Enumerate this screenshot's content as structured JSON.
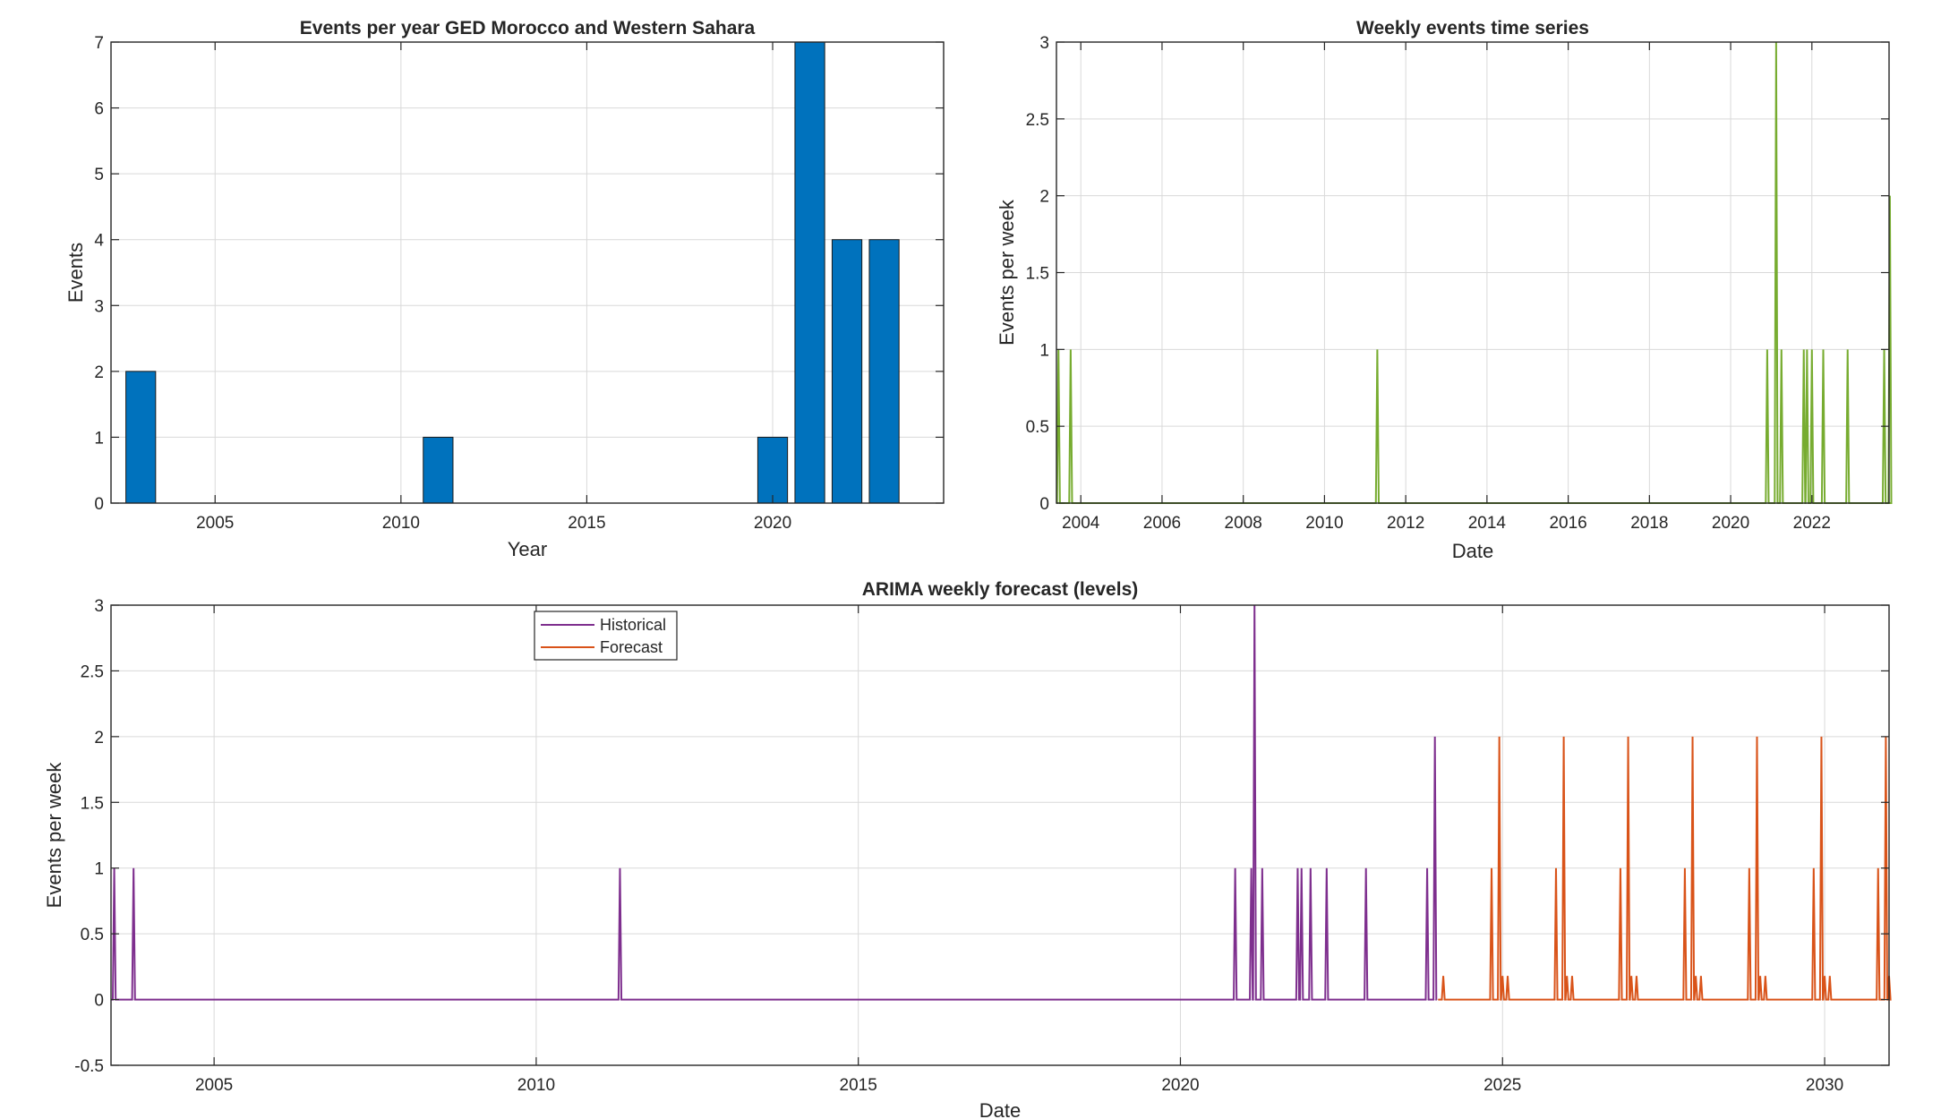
{
  "colors": {
    "bar": "#0072BD",
    "weekly": "#77AC30",
    "historical": "#7E2F8E",
    "forecast": "#D95319",
    "grid": "#d9d9d9",
    "axis": "#262626"
  },
  "chart_data": [
    {
      "type": "bar",
      "title": "Events per year GED Morocco and Western Sahara",
      "xlabel": "Year",
      "ylabel": "Events",
      "xlim": [
        2002.2,
        2024.6
      ],
      "ylim": [
        0,
        7
      ],
      "xticks": [
        2005,
        2010,
        2015,
        2020
      ],
      "yticks": [
        0,
        1,
        2,
        3,
        4,
        5,
        6,
        7
      ],
      "grid": true,
      "categories": [
        2003,
        2011,
        2020,
        2021,
        2022,
        2023
      ],
      "values": [
        2,
        1,
        1,
        7,
        4,
        4
      ]
    },
    {
      "type": "line",
      "title": "Weekly events time series",
      "xlabel": "Date",
      "ylabel": "Events per week",
      "xlim": [
        2003.4,
        2023.9
      ],
      "ylim": [
        0,
        3
      ],
      "xticks": [
        2004,
        2006,
        2008,
        2010,
        2012,
        2014,
        2016,
        2018,
        2020,
        2022
      ],
      "yticks": [
        "0",
        "0.5",
        "1",
        "1.5",
        "2",
        "2.5",
        "3"
      ],
      "grid": true,
      "baseline": 0,
      "spikes": [
        {
          "x": 2003.45,
          "y": 1
        },
        {
          "x": 2003.75,
          "y": 1
        },
        {
          "x": 2011.3,
          "y": 1
        },
        {
          "x": 2020.9,
          "y": 1
        },
        {
          "x": 2021.12,
          "y": 3
        },
        {
          "x": 2021.25,
          "y": 1
        },
        {
          "x": 2021.8,
          "y": 1
        },
        {
          "x": 2021.88,
          "y": 1
        },
        {
          "x": 2022.0,
          "y": 1
        },
        {
          "x": 2022.28,
          "y": 1
        },
        {
          "x": 2022.88,
          "y": 1
        },
        {
          "x": 2023.78,
          "y": 1
        },
        {
          "x": 2023.92,
          "y": 2
        }
      ]
    },
    {
      "type": "line",
      "title": "ARIMA weekly forecast (levels)",
      "xlabel": "Date",
      "ylabel": "Events per week",
      "xlim": [
        2003.4,
        2031.0
      ],
      "ylim": [
        -0.5,
        3
      ],
      "xticks": [
        2005,
        2010,
        2015,
        2020,
        2025,
        2030
      ],
      "yticks": [
        "-0.5",
        "0",
        "0.5",
        "1",
        "1.5",
        "2",
        "2.5",
        "3"
      ],
      "grid": true,
      "legend": {
        "location": "top-left",
        "entries": [
          "Historical",
          "Forecast"
        ]
      },
      "series": [
        {
          "name": "Historical",
          "baseline": 0,
          "spikes": [
            {
              "x": 2003.45,
              "y": 1
            },
            {
              "x": 2003.75,
              "y": 1
            },
            {
              "x": 2011.3,
              "y": 1
            },
            {
              "x": 2020.85,
              "y": 1
            },
            {
              "x": 2021.1,
              "y": 1
            },
            {
              "x": 2021.15,
              "y": 3
            },
            {
              "x": 2021.27,
              "y": 1
            },
            {
              "x": 2021.82,
              "y": 1
            },
            {
              "x": 2021.88,
              "y": 1
            },
            {
              "x": 2022.02,
              "y": 1
            },
            {
              "x": 2022.27,
              "y": 1
            },
            {
              "x": 2022.88,
              "y": 1
            },
            {
              "x": 2023.83,
              "y": 1
            },
            {
              "x": 2023.95,
              "y": 2
            }
          ]
        },
        {
          "name": "Forecast",
          "start": 2024.0,
          "end": 2031.0,
          "period": 1.0,
          "pattern": [
            {
              "dx": 0.08,
              "y": 0.18
            },
            {
              "dx": 0.83,
              "y": 1
            },
            {
              "dx": 0.95,
              "y": 2
            },
            {
              "dx": 1.0,
              "y": 0.18
            }
          ]
        }
      ]
    }
  ]
}
